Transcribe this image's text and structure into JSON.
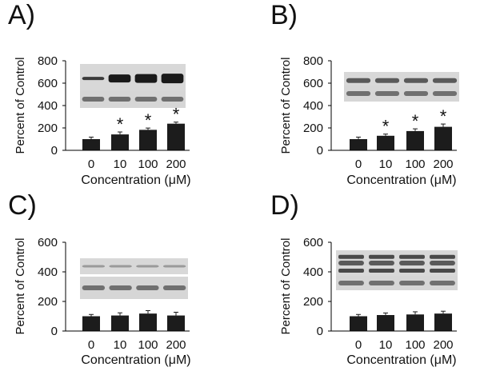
{
  "chart_data": [
    {
      "panel": "A)",
      "type": "bar",
      "categories": [
        "0",
        "10",
        "100",
        "200"
      ],
      "values": [
        100,
        142,
        183,
        238
      ],
      "errors": [
        18,
        22,
        16,
        14
      ],
      "significant": [
        false,
        true,
        true,
        true
      ],
      "marker": "*",
      "ylabel": "Percent of Control",
      "xlabel": "Concentration (μM)",
      "ylim": [
        0,
        800
      ],
      "yticks": [
        0,
        200,
        400,
        600,
        800
      ]
    },
    {
      "panel": "B)",
      "type": "bar",
      "categories": [
        "0",
        "10",
        "100",
        "200"
      ],
      "values": [
        100,
        130,
        172,
        210
      ],
      "errors": [
        18,
        15,
        20,
        25
      ],
      "significant": [
        false,
        true,
        true,
        true
      ],
      "marker": "*",
      "ylabel": "Percent of Control",
      "xlabel": "Concentration (μM)",
      "ylim": [
        0,
        800
      ],
      "yticks": [
        0,
        200,
        400,
        600,
        800
      ]
    },
    {
      "panel": "C)",
      "type": "bar",
      "categories": [
        "0",
        "10",
        "100",
        "200"
      ],
      "values": [
        100,
        105,
        118,
        105
      ],
      "errors": [
        12,
        18,
        20,
        22
      ],
      "significant": [
        false,
        false,
        false,
        false
      ],
      "marker": "*",
      "ylabel": "Percent of Control",
      "xlabel": "Concentration (μM)",
      "ylim": [
        0,
        600
      ],
      "yticks": [
        0,
        200,
        400,
        600
      ]
    },
    {
      "panel": "D)",
      "type": "bar",
      "categories": [
        "0",
        "10",
        "100",
        "200"
      ],
      "values": [
        100,
        108,
        112,
        118
      ],
      "errors": [
        12,
        14,
        18,
        16
      ],
      "significant": [
        false,
        false,
        false,
        false
      ],
      "marker": "*",
      "ylabel": "Percent of Control",
      "xlabel": "Concentration (μM)",
      "ylim": [
        0,
        600
      ],
      "yticks": [
        0,
        200,
        400,
        600
      ]
    }
  ]
}
